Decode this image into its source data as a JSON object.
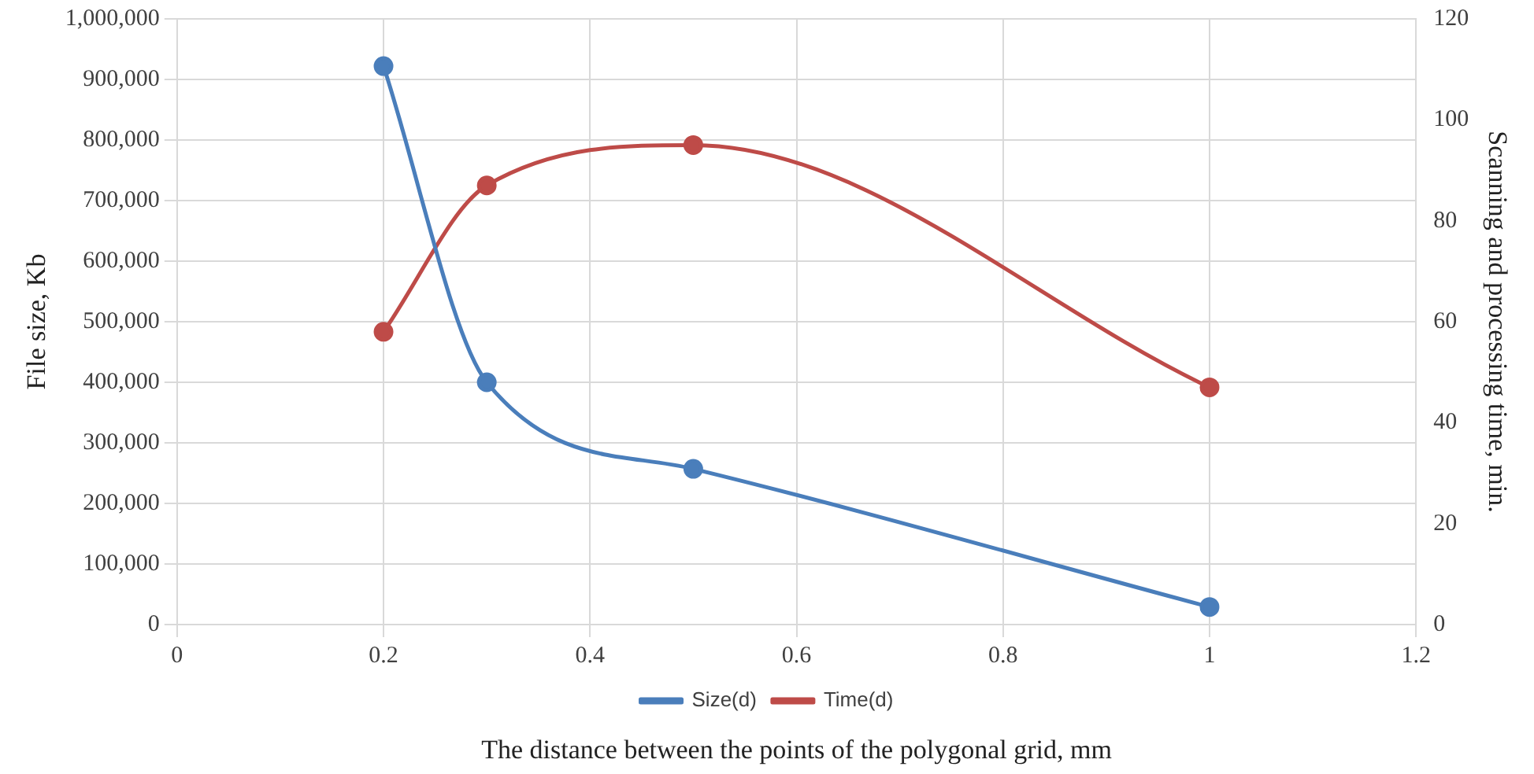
{
  "chart_data": {
    "type": "line",
    "xlabel": "The distance between the points of the polygonal grid, mm",
    "ylabel": "File size, Kb",
    "y2label": "Scanning and processing time, min.",
    "x": [
      0.2,
      0.3,
      0.5,
      1
    ],
    "series": [
      {
        "name": "Size(d)",
        "color": "#4a7ebb",
        "values": [
          922000,
          400000,
          257000,
          29000
        ]
      },
      {
        "name": "Time(d)",
        "color": "#be4b48",
        "values": [
          58,
          87,
          95,
          47
        ],
        "axis": "y2"
      }
    ],
    "xlim": [
      0,
      1.2
    ],
    "xticks": [
      0,
      0.2,
      0.4,
      0.6,
      0.8,
      1,
      1.2
    ],
    "ylim": [
      0,
      1000000
    ],
    "yticks": [
      0,
      {
        "value": 100000,
        "label": "100,000"
      },
      {
        "value": 200000,
        "label": "200,000"
      },
      {
        "value": 300000,
        "label": "300,000"
      },
      {
        "value": 400000,
        "label": "400,000"
      },
      {
        "value": 500000,
        "label": "500,000"
      },
      {
        "value": 600000,
        "label": "600,000"
      },
      {
        "value": 700000,
        "label": "700,000"
      },
      {
        "value": 800000,
        "label": "800,000"
      },
      {
        "value": 900000,
        "label": "900,000"
      },
      {
        "value": 1000000,
        "label": "1,000,000"
      }
    ],
    "y2lim": [
      0,
      120
    ],
    "y2ticks": [
      0,
      20,
      40,
      60,
      80,
      100,
      120
    ],
    "grid": true,
    "legend": "bottom",
    "marker": "circle",
    "line_style": "solid"
  }
}
